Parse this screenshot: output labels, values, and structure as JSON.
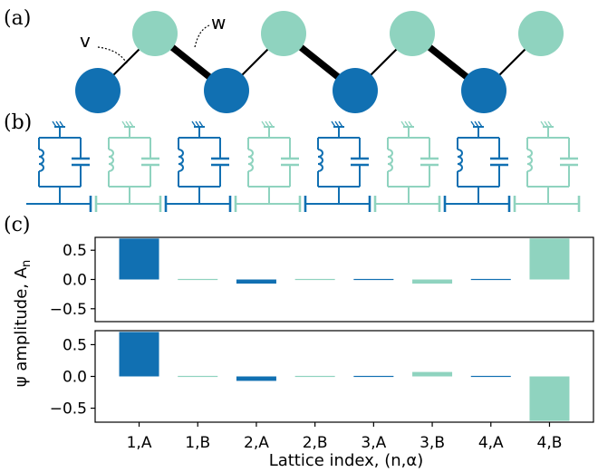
{
  "colors": {
    "A": "#1170b2",
    "B": "#8fd3bf",
    "bond": "#000000"
  },
  "panels": {
    "a": "(a)",
    "b": "(b)",
    "c": "(c)"
  },
  "panel_a": {
    "v_label": "v",
    "w_label": "w",
    "num_cells": 4
  },
  "panel_b": {
    "num_cells": 4,
    "element_icons": [
      "ground-icon",
      "inductor-icon",
      "capacitor-icon",
      "coupling-capacitor-icon"
    ]
  },
  "chart_data": {
    "type": "bar",
    "categories": [
      "1,A",
      "1,B",
      "2,A",
      "2,B",
      "3,A",
      "3,B",
      "4,A",
      "4,B"
    ],
    "category_colors": [
      "#1170b2",
      "#8fd3bf",
      "#1170b2",
      "#8fd3bf",
      "#1170b2",
      "#8fd3bf",
      "#1170b2",
      "#8fd3bf"
    ],
    "xlabel": "Lattice index, (n,α)",
    "ylabel": "ψ amplitude, A",
    "ylabel_subscript": "n",
    "ylim": [
      -0.72,
      0.72
    ],
    "yticks": [
      0.5,
      0.0,
      -0.5
    ],
    "ytick_labels": [
      "0.5",
      "0.0",
      "−0.5"
    ],
    "series": [
      {
        "values": [
          0.7,
          0.0,
          -0.07,
          0.0,
          -0.01,
          -0.07,
          0.0,
          0.7
        ]
      },
      {
        "values": [
          0.7,
          0.0,
          -0.07,
          0.0,
          -0.01,
          0.07,
          0.0,
          -0.7
        ]
      }
    ]
  }
}
